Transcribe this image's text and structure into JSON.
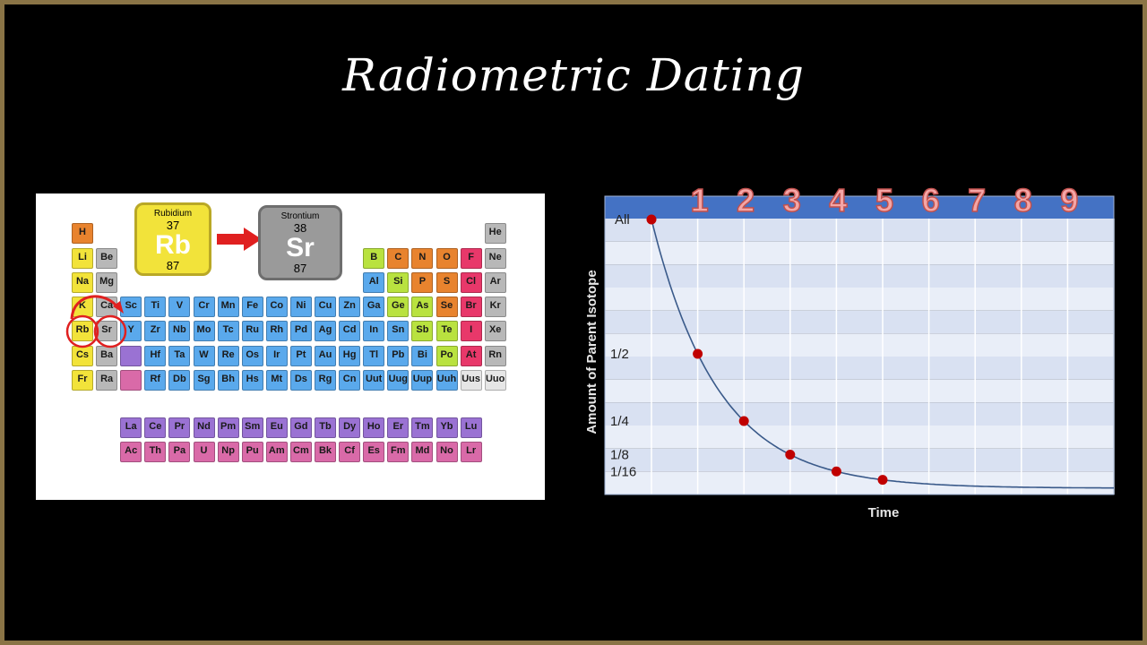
{
  "slide": {
    "title": "Radiometric Dating"
  },
  "periodic_table": {
    "rubidium": {
      "name": "Rubidium",
      "number": "37",
      "symbol": "Rb",
      "mass": "87"
    },
    "strontium": {
      "name": "Strontium",
      "number": "38",
      "symbol": "Sr",
      "mass": "87"
    },
    "elements": [
      {
        "s": "H",
        "c": "orange",
        "r": 1,
        "col": 1
      },
      {
        "s": "He",
        "c": "gray",
        "r": 1,
        "col": 18
      },
      {
        "s": "Li",
        "c": "yellow",
        "r": 2,
        "col": 1
      },
      {
        "s": "Be",
        "c": "gray",
        "r": 2,
        "col": 2
      },
      {
        "s": "B",
        "c": "lime",
        "r": 2,
        "col": 13
      },
      {
        "s": "C",
        "c": "orange",
        "r": 2,
        "col": 14
      },
      {
        "s": "N",
        "c": "orange",
        "r": 2,
        "col": 15
      },
      {
        "s": "O",
        "c": "orange",
        "r": 2,
        "col": 16
      },
      {
        "s": "F",
        "c": "pink",
        "r": 2,
        "col": 17
      },
      {
        "s": "Ne",
        "c": "gray",
        "r": 2,
        "col": 18
      },
      {
        "s": "Na",
        "c": "yellow",
        "r": 3,
        "col": 1
      },
      {
        "s": "Mg",
        "c": "gray",
        "r": 3,
        "col": 2
      },
      {
        "s": "Al",
        "c": "blue",
        "r": 3,
        "col": 13
      },
      {
        "s": "Si",
        "c": "lime",
        "r": 3,
        "col": 14
      },
      {
        "s": "P",
        "c": "orange",
        "r": 3,
        "col": 15
      },
      {
        "s": "S",
        "c": "orange",
        "r": 3,
        "col": 16
      },
      {
        "s": "Cl",
        "c": "pink",
        "r": 3,
        "col": 17
      },
      {
        "s": "Ar",
        "c": "gray",
        "r": 3,
        "col": 18
      },
      {
        "s": "K",
        "c": "yellow",
        "r": 4,
        "col": 1
      },
      {
        "s": "Ca",
        "c": "gray",
        "r": 4,
        "col": 2
      },
      {
        "s": "Sc",
        "c": "blue",
        "r": 4,
        "col": 3
      },
      {
        "s": "Ti",
        "c": "blue",
        "r": 4,
        "col": 4
      },
      {
        "s": "V",
        "c": "blue",
        "r": 4,
        "col": 5
      },
      {
        "s": "Cr",
        "c": "blue",
        "r": 4,
        "col": 6
      },
      {
        "s": "Mn",
        "c": "blue",
        "r": 4,
        "col": 7
      },
      {
        "s": "Fe",
        "c": "blue",
        "r": 4,
        "col": 8
      },
      {
        "s": "Co",
        "c": "blue",
        "r": 4,
        "col": 9
      },
      {
        "s": "Ni",
        "c": "blue",
        "r": 4,
        "col": 10
      },
      {
        "s": "Cu",
        "c": "blue",
        "r": 4,
        "col": 11
      },
      {
        "s": "Zn",
        "c": "blue",
        "r": 4,
        "col": 12
      },
      {
        "s": "Ga",
        "c": "blue",
        "r": 4,
        "col": 13
      },
      {
        "s": "Ge",
        "c": "lime",
        "r": 4,
        "col": 14
      },
      {
        "s": "As",
        "c": "lime",
        "r": 4,
        "col": 15
      },
      {
        "s": "Se",
        "c": "orange",
        "r": 4,
        "col": 16
      },
      {
        "s": "Br",
        "c": "pink",
        "r": 4,
        "col": 17
      },
      {
        "s": "Kr",
        "c": "gray",
        "r": 4,
        "col": 18
      },
      {
        "s": "Rb",
        "c": "yellow",
        "r": 5,
        "col": 1
      },
      {
        "s": "Sr",
        "c": "gray",
        "r": 5,
        "col": 2
      },
      {
        "s": "Y",
        "c": "blue",
        "r": 5,
        "col": 3
      },
      {
        "s": "Zr",
        "c": "blue",
        "r": 5,
        "col": 4
      },
      {
        "s": "Nb",
        "c": "blue",
        "r": 5,
        "col": 5
      },
      {
        "s": "Mo",
        "c": "blue",
        "r": 5,
        "col": 6
      },
      {
        "s": "Tc",
        "c": "blue",
        "r": 5,
        "col": 7
      },
      {
        "s": "Ru",
        "c": "blue",
        "r": 5,
        "col": 8
      },
      {
        "s": "Rh",
        "c": "blue",
        "r": 5,
        "col": 9
      },
      {
        "s": "Pd",
        "c": "blue",
        "r": 5,
        "col": 10
      },
      {
        "s": "Ag",
        "c": "blue",
        "r": 5,
        "col": 11
      },
      {
        "s": "Cd",
        "c": "blue",
        "r": 5,
        "col": 12
      },
      {
        "s": "In",
        "c": "blue",
        "r": 5,
        "col": 13
      },
      {
        "s": "Sn",
        "c": "blue",
        "r": 5,
        "col": 14
      },
      {
        "s": "Sb",
        "c": "lime",
        "r": 5,
        "col": 15
      },
      {
        "s": "Te",
        "c": "lime",
        "r": 5,
        "col": 16
      },
      {
        "s": "I",
        "c": "pink",
        "r": 5,
        "col": 17
      },
      {
        "s": "Xe",
        "c": "gray",
        "r": 5,
        "col": 18
      },
      {
        "s": "Cs",
        "c": "yellow",
        "r": 6,
        "col": 1
      },
      {
        "s": "Ba",
        "c": "gray",
        "r": 6,
        "col": 2
      },
      {
        "s": "",
        "c": "purple",
        "r": 6,
        "col": 3
      },
      {
        "s": "Hf",
        "c": "blue",
        "r": 6,
        "col": 4
      },
      {
        "s": "Ta",
        "c": "blue",
        "r": 6,
        "col": 5
      },
      {
        "s": "W",
        "c": "blue",
        "r": 6,
        "col": 6
      },
      {
        "s": "Re",
        "c": "blue",
        "r": 6,
        "col": 7
      },
      {
        "s": "Os",
        "c": "blue",
        "r": 6,
        "col": 8
      },
      {
        "s": "Ir",
        "c": "blue",
        "r": 6,
        "col": 9
      },
      {
        "s": "Pt",
        "c": "blue",
        "r": 6,
        "col": 10
      },
      {
        "s": "Au",
        "c": "blue",
        "r": 6,
        "col": 11
      },
      {
        "s": "Hg",
        "c": "blue",
        "r": 6,
        "col": 12
      },
      {
        "s": "Tl",
        "c": "blue",
        "r": 6,
        "col": 13
      },
      {
        "s": "Pb",
        "c": "blue",
        "r": 6,
        "col": 14
      },
      {
        "s": "Bi",
        "c": "blue",
        "r": 6,
        "col": 15
      },
      {
        "s": "Po",
        "c": "lime",
        "r": 6,
        "col": 16
      },
      {
        "s": "At",
        "c": "pink",
        "r": 6,
        "col": 17
      },
      {
        "s": "Rn",
        "c": "gray",
        "r": 6,
        "col": 18
      },
      {
        "s": "Fr",
        "c": "yellow",
        "r": 7,
        "col": 1
      },
      {
        "s": "Ra",
        "c": "gray",
        "r": 7,
        "col": 2
      },
      {
        "s": "",
        "c": "magenta",
        "r": 7,
        "col": 3
      },
      {
        "s": "Rf",
        "c": "blue",
        "r": 7,
        "col": 4
      },
      {
        "s": "Db",
        "c": "blue",
        "r": 7,
        "col": 5
      },
      {
        "s": "Sg",
        "c": "blue",
        "r": 7,
        "col": 6
      },
      {
        "s": "Bh",
        "c": "blue",
        "r": 7,
        "col": 7
      },
      {
        "s": "Hs",
        "c": "blue",
        "r": 7,
        "col": 8
      },
      {
        "s": "Mt",
        "c": "blue",
        "r": 7,
        "col": 9
      },
      {
        "s": "Ds",
        "c": "blue",
        "r": 7,
        "col": 10
      },
      {
        "s": "Rg",
        "c": "blue",
        "r": 7,
        "col": 11
      },
      {
        "s": "Cn",
        "c": "blue",
        "r": 7,
        "col": 12
      },
      {
        "s": "Uut",
        "c": "blue",
        "r": 7,
        "col": 13
      },
      {
        "s": "Uug",
        "c": "blue",
        "r": 7,
        "col": 14
      },
      {
        "s": "Uup",
        "c": "blue",
        "r": 7,
        "col": 15
      },
      {
        "s": "Uuh",
        "c": "blue",
        "r": 7,
        "col": 16
      },
      {
        "s": "Uus",
        "c": "white",
        "r": 7,
        "col": 17
      },
      {
        "s": "Uuo",
        "c": "white",
        "r": 7,
        "col": 18
      },
      {
        "s": "La",
        "c": "purple",
        "r": 9,
        "col": 3
      },
      {
        "s": "Ce",
        "c": "purple",
        "r": 9,
        "col": 4
      },
      {
        "s": "Pr",
        "c": "purple",
        "r": 9,
        "col": 5
      },
      {
        "s": "Nd",
        "c": "purple",
        "r": 9,
        "col": 6
      },
      {
        "s": "Pm",
        "c": "purple",
        "r": 9,
        "col": 7
      },
      {
        "s": "Sm",
        "c": "purple",
        "r": 9,
        "col": 8
      },
      {
        "s": "Eu",
        "c": "purple",
        "r": 9,
        "col": 9
      },
      {
        "s": "Gd",
        "c": "purple",
        "r": 9,
        "col": 10
      },
      {
        "s": "Tb",
        "c": "purple",
        "r": 9,
        "col": 11
      },
      {
        "s": "Dy",
        "c": "purple",
        "r": 9,
        "col": 12
      },
      {
        "s": "Ho",
        "c": "purple",
        "r": 9,
        "col": 13
      },
      {
        "s": "Er",
        "c": "purple",
        "r": 9,
        "col": 14
      },
      {
        "s": "Tm",
        "c": "purple",
        "r": 9,
        "col": 15
      },
      {
        "s": "Yb",
        "c": "purple",
        "r": 9,
        "col": 16
      },
      {
        "s": "Lu",
        "c": "purple",
        "r": 9,
        "col": 17
      },
      {
        "s": "Ac",
        "c": "magenta",
        "r": 10,
        "col": 3
      },
      {
        "s": "Th",
        "c": "magenta",
        "r": 10,
        "col": 4
      },
      {
        "s": "Pa",
        "c": "magenta",
        "r": 10,
        "col": 5
      },
      {
        "s": "U",
        "c": "magenta",
        "r": 10,
        "col": 6
      },
      {
        "s": "Np",
        "c": "magenta",
        "r": 10,
        "col": 7
      },
      {
        "s": "Pu",
        "c": "magenta",
        "r": 10,
        "col": 8
      },
      {
        "s": "Am",
        "c": "magenta",
        "r": 10,
        "col": 9
      },
      {
        "s": "Cm",
        "c": "magenta",
        "r": 10,
        "col": 10
      },
      {
        "s": "Bk",
        "c": "magenta",
        "r": 10,
        "col": 11
      },
      {
        "s": "Cf",
        "c": "magenta",
        "r": 10,
        "col": 12
      },
      {
        "s": "Es",
        "c": "magenta",
        "r": 10,
        "col": 13
      },
      {
        "s": "Fm",
        "c": "magenta",
        "r": 10,
        "col": 14
      },
      {
        "s": "Md",
        "c": "magenta",
        "r": 10,
        "col": 15
      },
      {
        "s": "No",
        "c": "magenta",
        "r": 10,
        "col": 16
      },
      {
        "s": "Lr",
        "c": "magenta",
        "r": 10,
        "col": 17
      }
    ],
    "colors": {
      "orange": "#e8832e",
      "gray": "#b8b8b8",
      "yellow": "#f2e33a",
      "lime": "#b9e23f",
      "pink": "#e8386a",
      "blue": "#5aa9ec",
      "purple": "#9a72d3",
      "magenta": "#d96aa8",
      "white": "#e6e6e6"
    },
    "accent_red": "#e02020"
  },
  "chart_data": {
    "type": "line",
    "xlabel": "Time",
    "ylabel": "Amount of Parent Isotope",
    "top_labels": [
      "1",
      "2",
      "3",
      "4",
      "5",
      "6",
      "7",
      "8",
      "9"
    ],
    "y_tick_labels": [
      "All",
      "1/2",
      "1/4",
      "1/8",
      "1/16"
    ],
    "x": [
      0,
      1,
      2,
      3,
      4,
      5
    ],
    "y": [
      1,
      0.5,
      0.25,
      0.125,
      0.0625,
      0.03125
    ],
    "curve_extends_to_x": 10,
    "grid": true,
    "colors": {
      "header": "#4472c4",
      "band_a": "#d9e1f2",
      "band_b": "#e9eef8",
      "point": "#c00000",
      "curve": "#3a5a8a",
      "number_fill": "#f4a6a6",
      "number_stroke": "#c0504d"
    }
  }
}
